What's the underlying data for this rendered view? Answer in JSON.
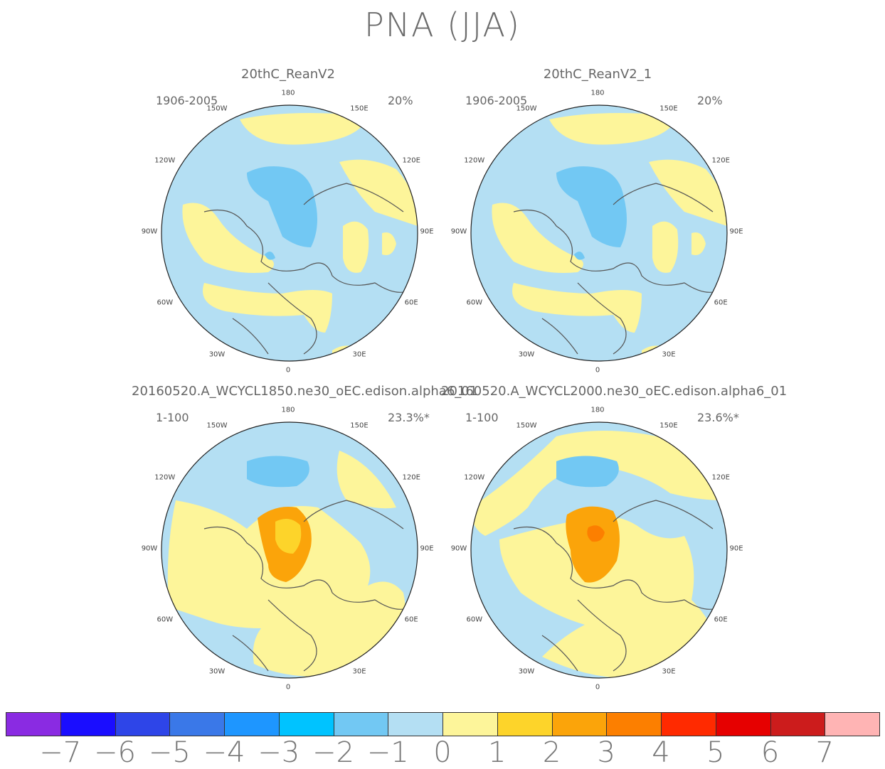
{
  "title": "PNA (JJA)",
  "panels": [
    {
      "title": "20thC_ReanV2",
      "period": "1906-2005",
      "percent": "20%",
      "style": "obs"
    },
    {
      "title": "20thC_ReanV2_1",
      "period": "1906-2005",
      "percent": "20%",
      "style": "obs"
    },
    {
      "title": "20160520.A_WCYCL1850.ne30_oEC.edison.alpha6_01",
      "period": "1-100",
      "percent": "23.3%*",
      "style": "model"
    },
    {
      "title": "20160520.A_WCYCL2000.ne30_oEC.edison.alpha6_01",
      "period": "1-100",
      "percent": "23.6%*",
      "style": "model"
    }
  ],
  "lon_labels": {
    "l180": "180",
    "l150W": "150W",
    "l150E": "150E",
    "l120W": "120W",
    "l120E": "120E",
    "l90W": "90W",
    "l90E": "90E",
    "l60W": "60W",
    "l60E": "60E",
    "l30W": "30W",
    "l30E": "30E",
    "l0": "0"
  },
  "colorbar": {
    "colors": [
      "#8a2be2",
      "#1a0dff",
      "#2e45e8",
      "#3a78e8",
      "#1e96ff",
      "#00c3ff",
      "#72c8f3",
      "#b4dff3",
      "#fdf59a",
      "#fdd42a",
      "#fba40a",
      "#fc7f00",
      "#ff2a00",
      "#e60000",
      "#cc1c1c",
      "#ffb4b4"
    ],
    "labels": [
      "−7",
      "−6",
      "−5",
      "−4",
      "−3",
      "−2",
      "−1",
      "0",
      "1",
      "2",
      "3",
      "4",
      "5",
      "6",
      "7"
    ]
  }
}
